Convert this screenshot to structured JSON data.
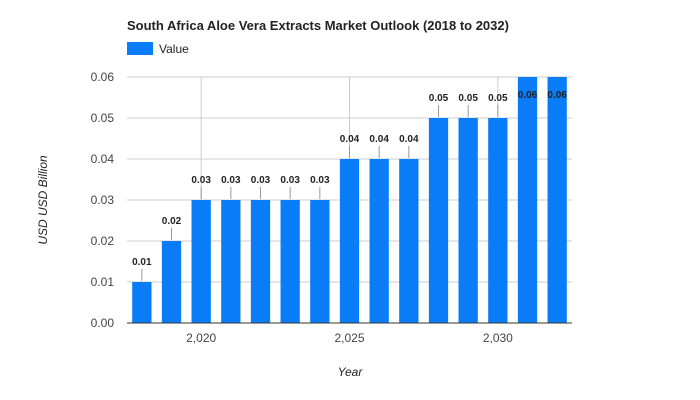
{
  "chart_data": {
    "type": "bar",
    "title": "South Africa Aloe Vera Extracts Market Outlook (2018 to 2032)",
    "xlabel": "Year",
    "ylabel": "USD USD Billion",
    "legend": {
      "position": "top-left",
      "entries": [
        "Value"
      ]
    },
    "grid": true,
    "categories": [
      2018,
      2019,
      2020,
      2021,
      2022,
      2023,
      2024,
      2025,
      2026,
      2027,
      2028,
      2029,
      2030,
      2031,
      2032
    ],
    "series": [
      {
        "name": "Value",
        "color": "#0a7cf8",
        "values": [
          0.01,
          0.02,
          0.03,
          0.03,
          0.03,
          0.03,
          0.03,
          0.04,
          0.04,
          0.04,
          0.05,
          0.05,
          0.05,
          0.06,
          0.06
        ],
        "labels": [
          "0.01",
          "0.02",
          "0.03",
          "0.03",
          "0.03",
          "0.03",
          "0.03",
          "0.04",
          "0.04",
          "0.04",
          "0.05",
          "0.05",
          "0.05",
          "0.06",
          "0.06"
        ]
      }
    ],
    "ylim": [
      0,
      0.06
    ],
    "yticks": [
      0,
      0.01,
      0.02,
      0.03,
      0.04,
      0.05,
      0.06
    ],
    "yticklabels": [
      "0.00",
      "0.01",
      "0.02",
      "0.03",
      "0.04",
      "0.05",
      "0.06"
    ],
    "xticks": [
      2020,
      2025,
      2030
    ],
    "xticklabels": [
      "2,020",
      "2,025",
      "2,030"
    ]
  }
}
